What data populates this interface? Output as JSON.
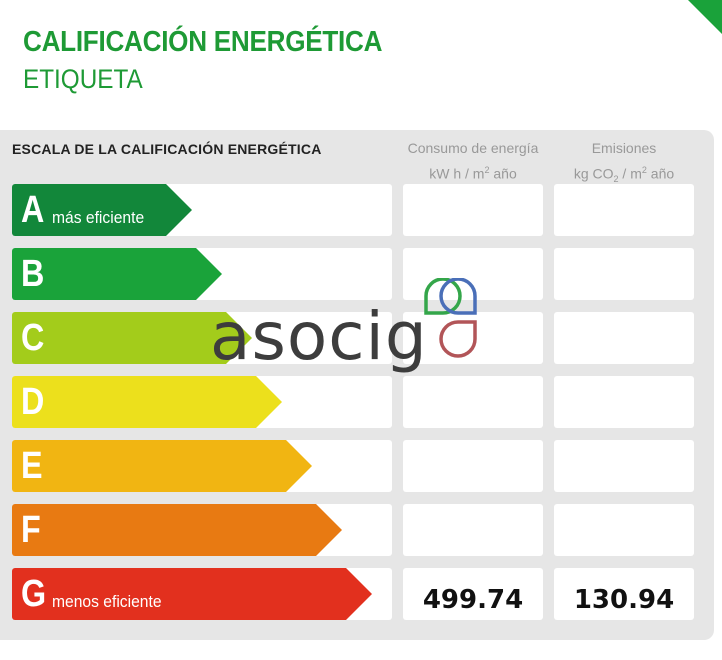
{
  "header": {
    "title": "CALIFICACIÓN ENERGÉTICA",
    "subtitle": "ETIQUETA"
  },
  "scale": {
    "title": "ESCALA DE LA CALIFICACIÓN ENERGÉTICA",
    "columns": {
      "consumo": {
        "line1": "Consumo de energía",
        "line2_pre": "kW h / m",
        "line2_sup": "2",
        "line2_post": " año"
      },
      "emisiones": {
        "line1": "Emisiones",
        "line2_pre": "kg CO",
        "line2_sub": "2",
        "line2_mid": " / m",
        "line2_sup": "2",
        "line2_post": " año"
      }
    },
    "ratings": [
      {
        "letter": "A",
        "description": "más eficiente",
        "color": "#12873a"
      },
      {
        "letter": "B",
        "description": "",
        "color": "#1aa33a"
      },
      {
        "letter": "C",
        "description": "",
        "color": "#a3cc1b"
      },
      {
        "letter": "D",
        "description": "",
        "color": "#ece01c"
      },
      {
        "letter": "E",
        "description": "",
        "color": "#f1b512"
      },
      {
        "letter": "F",
        "description": "",
        "color": "#e87a12"
      },
      {
        "letter": "G",
        "description": "menos eficiente",
        "color": "#e2301e"
      }
    ],
    "current_rating": "G",
    "consumo_value": "499.74",
    "emisiones_value": "130.94"
  },
  "watermark": {
    "text": "asocig",
    "colors": {
      "green": "#34a64a",
      "blue": "#4a6fb8",
      "red": "#b25558",
      "text": "#3d3d3d"
    }
  }
}
